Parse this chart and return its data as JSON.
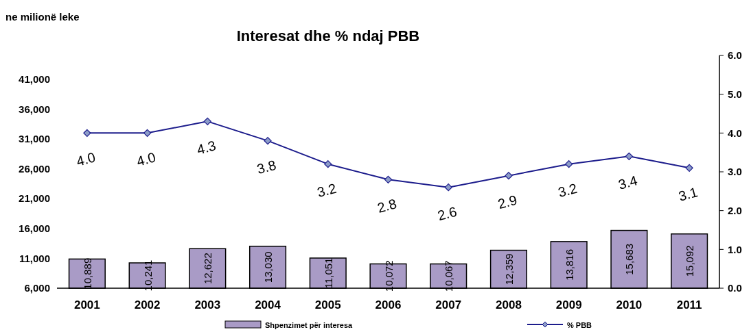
{
  "chart_data": {
    "type": "bar",
    "title": "Interesat dhe % ndaj PBB",
    "ylabel": "ne milionë leke",
    "categories": [
      "2001",
      "2002",
      "2003",
      "2004",
      "2005",
      "2006",
      "2007",
      "2008",
      "2009",
      "2010",
      "2011"
    ],
    "series": [
      {
        "name": "Shpenzimet për interesa",
        "color": "#a99bc6",
        "values": [
          10889,
          10241,
          12622,
          13030,
          11051,
          10072,
          10067,
          12359,
          13816,
          15683,
          15092
        ],
        "value_labels": [
          "10,889",
          "10,241",
          "12,622",
          "13,030",
          "11,051",
          "10,072",
          "10,067",
          "12,359",
          "13,816",
          "15,683",
          "15,092"
        ]
      },
      {
        "name": "% PBB",
        "type": "line",
        "axis": "y2",
        "color": "#1c1c8c",
        "values": [
          4.0,
          4.0,
          4.3,
          3.8,
          3.2,
          2.8,
          2.6,
          2.9,
          3.2,
          3.4,
          3.1
        ],
        "value_labels": [
          "4.0",
          "4.0",
          "4.3",
          "3.8",
          "3.2",
          "2.8",
          "2.6",
          "2.9",
          "3.2",
          "3.4",
          "3.1"
        ]
      }
    ],
    "ylim": [
      6000,
      45000
    ],
    "yticks": [
      {
        "value": 6000,
        "label": "6,000"
      },
      {
        "value": 11000,
        "label": "11,000"
      },
      {
        "value": 16000,
        "label": "16,000"
      },
      {
        "value": 21000,
        "label": "21,000"
      },
      {
        "value": 26000,
        "label": "26,000"
      },
      {
        "value": 31000,
        "label": "31,000"
      },
      {
        "value": 36000,
        "label": "36,000"
      },
      {
        "value": 41000,
        "label": "41,000"
      }
    ],
    "y2lim": [
      0,
      6
    ],
    "y2ticks": [
      {
        "value": 0,
        "label": "0.0"
      },
      {
        "value": 1,
        "label": "1.0"
      },
      {
        "value": 2,
        "label": "2.0"
      },
      {
        "value": 3,
        "label": "3.0"
      },
      {
        "value": 4,
        "label": "4.0"
      },
      {
        "value": 5,
        "label": "5.0"
      },
      {
        "value": 6,
        "label": "6.0"
      }
    ],
    "grid": false,
    "legend": "bottom",
    "marker": "diamond",
    "line_style": "solid"
  }
}
